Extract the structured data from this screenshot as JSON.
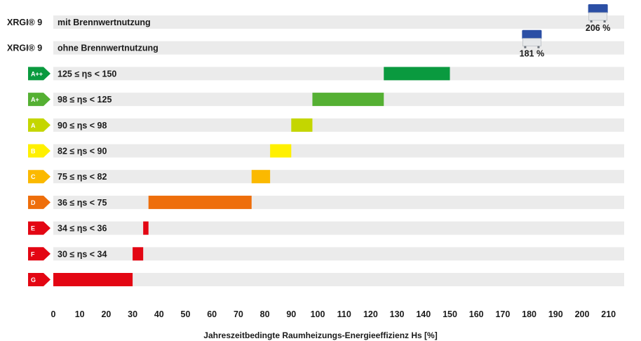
{
  "chart_data": {
    "type": "bar",
    "xlabel": "Jahreszeitbedingte Raumheizungs-Energieeffizienz Hs [%]",
    "xlim": [
      0,
      215
    ],
    "xticks": [
      0,
      10,
      20,
      30,
      40,
      50,
      60,
      70,
      80,
      90,
      100,
      110,
      120,
      130,
      140,
      150,
      160,
      170,
      180,
      190,
      200,
      210
    ],
    "products": [
      {
        "name": "XRGI® 9",
        "label": "mit Brennwertnutzung",
        "value": 206,
        "value_label": "206 %"
      },
      {
        "name": "XRGI® 9",
        "label": "ohne Brennwertnutzung",
        "value": 181,
        "value_label": "181 %"
      }
    ],
    "classes": [
      {
        "class": "A++",
        "range_label": "125 ≤ ηs < 150",
        "from": 125,
        "to": 150,
        "color": "#0a9a3f"
      },
      {
        "class": "A+",
        "range_label": "98 ≤ ηs < 125",
        "from": 98,
        "to": 125,
        "color": "#55b033"
      },
      {
        "class": "A",
        "range_label": "90 ≤ ηs < 98",
        "from": 90,
        "to": 98,
        "color": "#c4d600"
      },
      {
        "class": "B",
        "range_label": "82 ≤ ηs < 90",
        "from": 82,
        "to": 90,
        "color": "#fff000"
      },
      {
        "class": "C",
        "range_label": "75 ≤ ηs < 82",
        "from": 75,
        "to": 82,
        "color": "#fbb900"
      },
      {
        "class": "D",
        "range_label": "36 ≤ ηs < 75",
        "from": 36,
        "to": 75,
        "color": "#ee6e0b"
      },
      {
        "class": "E",
        "range_label": "34 ≤ ηs < 36",
        "from": 34,
        "to": 36,
        "color": "#e30613"
      },
      {
        "class": "F",
        "range_label": "30 ≤ ηs < 34",
        "from": 30,
        "to": 34,
        "color": "#e30613"
      },
      {
        "class": "G",
        "range_label": "",
        "from": 0,
        "to": 30,
        "color": "#e30613"
      }
    ]
  }
}
